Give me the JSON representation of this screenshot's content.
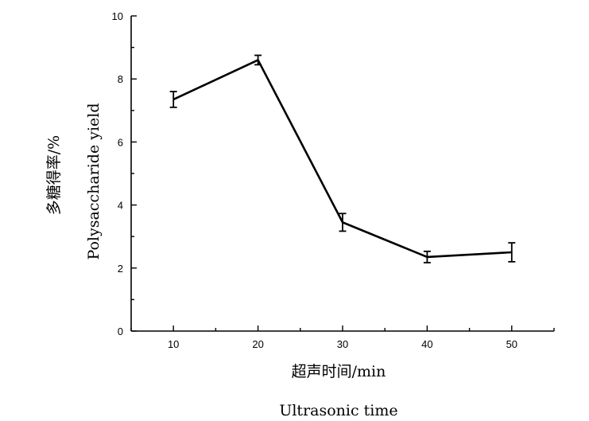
{
  "chart_data": {
    "type": "line",
    "xlabel_cn": "超声时间/min",
    "xlabel_en": "Ultrasonic time",
    "ylabel_cn": "多糖得率/%",
    "ylabel_en": "Polysaccharide yield",
    "xlim": [
      5,
      55
    ],
    "ylim": [
      0,
      10
    ],
    "x_ticks": [
      10,
      20,
      30,
      40,
      50
    ],
    "y_ticks": [
      0,
      2,
      4,
      6,
      8,
      10
    ],
    "grid": false,
    "series": [
      {
        "x": [
          10,
          20,
          30,
          40,
          50
        ],
        "y": [
          7.35,
          8.6,
          3.45,
          2.35,
          2.5
        ],
        "error": [
          0.25,
          0.15,
          0.28,
          0.18,
          0.3
        ]
      }
    ]
  }
}
